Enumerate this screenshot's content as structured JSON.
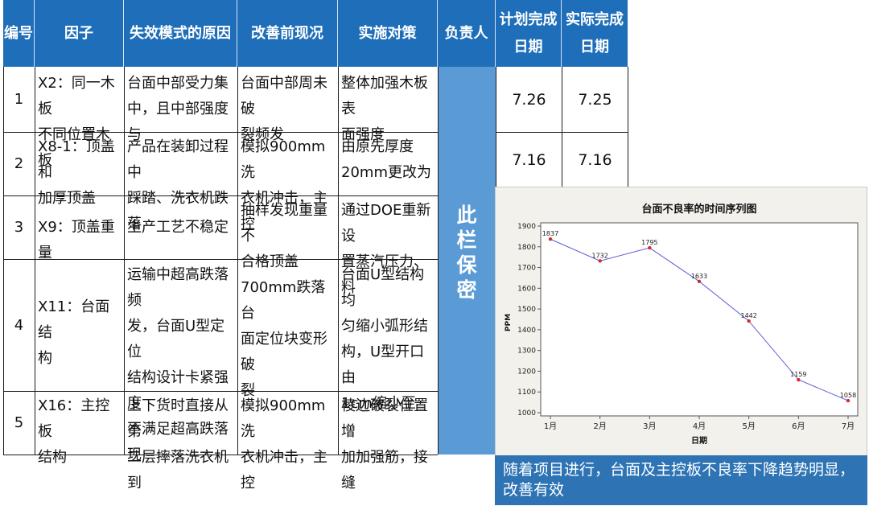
{
  "table": {
    "headers": [
      "编号",
      "因子",
      "失效模式的原因",
      "改善前现况",
      "实施对策",
      "负责人",
      "计划完成日期",
      "实际完成日期"
    ],
    "header_lines": {
      "plan": [
        "计划完成",
        "日期"
      ],
      "actual": [
        "实际完成",
        "日期"
      ]
    },
    "rows": [
      {
        "no": "1",
        "factor": [
          "X2：同一木板",
          "不同位置木板"
        ],
        "cause": [
          "台面中部受力集",
          "中，且中部强度与"
        ],
        "before": [
          "台面中部周未破",
          "裂频发"
        ],
        "action": [
          "整体加强木板表",
          "面强度"
        ],
        "plan": "7.26",
        "actual": "7.25"
      },
      {
        "no": "2",
        "factor": [
          "X8-1：顶盖和",
          "加厚顶盖"
        ],
        "cause": [
          "产品在装卸过程中",
          "踩踏、洗衣机跌落"
        ],
        "before": [
          "模拟900mm洗",
          "衣机冲击，主控"
        ],
        "action": [
          "由原先厚度",
          "20mm更改为"
        ],
        "plan": "7.16",
        "actual": "7.16"
      },
      {
        "no": "3",
        "factor": [
          "X9：顶盖重量"
        ],
        "cause": [
          "生产工艺不稳定"
        ],
        "before": [
          "抽样发现重量不",
          "合格顶盖"
        ],
        "action": [
          "通过DOE重新设",
          "置蒸汽压力、料"
        ],
        "plan": "",
        "actual": ""
      },
      {
        "no": "4",
        "factor": [
          "X11：台面结",
          "构"
        ],
        "cause": [
          "运输中超高跌落频",
          "发，台面U型定位",
          "结构设计卡紧强度",
          "不满足超高跌落现"
        ],
        "before": [
          "700mm跌落台",
          "面定位块变形破",
          "裂"
        ],
        "action": [
          "台面U型结构均",
          "匀缩小弧形结",
          "构，U型开口由",
          "1cm缩小至"
        ],
        "plan": "",
        "actual": ""
      },
      {
        "no": "5",
        "factor": [
          "X16：主控板",
          "结构"
        ],
        "cause": [
          "上下货时直接从第",
          "二层摔落洗衣机到"
        ],
        "before": [
          "模拟900mm洗",
          "衣机冲击，主控"
        ],
        "action": [
          "棱边破裂位置增",
          "加加强筋，接缝"
        ],
        "plan": "",
        "actual": ""
      }
    ],
    "owner_text": [
      "此",
      "栏",
      "保",
      "密"
    ]
  },
  "chart_data": {
    "type": "line",
    "title": "台面不良率的时间序列图",
    "xlabel": "日期",
    "ylabel": "PPM",
    "categories": [
      "1月",
      "2月",
      "3月",
      "4月",
      "5月",
      "6月",
      "7月"
    ],
    "values": [
      1837,
      1732,
      1795,
      1633,
      1442,
      1159,
      1058
    ],
    "data_labels": [
      "1837",
      "1732",
      "1795",
      "1633",
      "1442",
      "1159",
      "1058"
    ],
    "ylim": [
      1000,
      1900
    ],
    "yticks": [
      1000,
      1100,
      1200,
      1300,
      1400,
      1500,
      1600,
      1700,
      1800,
      1900
    ],
    "line_color": "#5b5bd6",
    "marker_color": "#d62b2b",
    "grid": false,
    "legend": "none"
  },
  "note": {
    "text": "随着项目进行，台面及主控板不良率下降趋势明显，改善有效",
    "background": "#2e74b5"
  },
  "colors": {
    "header_bg": "#1f6eb9",
    "owner_bg": "#5b9bd5"
  }
}
